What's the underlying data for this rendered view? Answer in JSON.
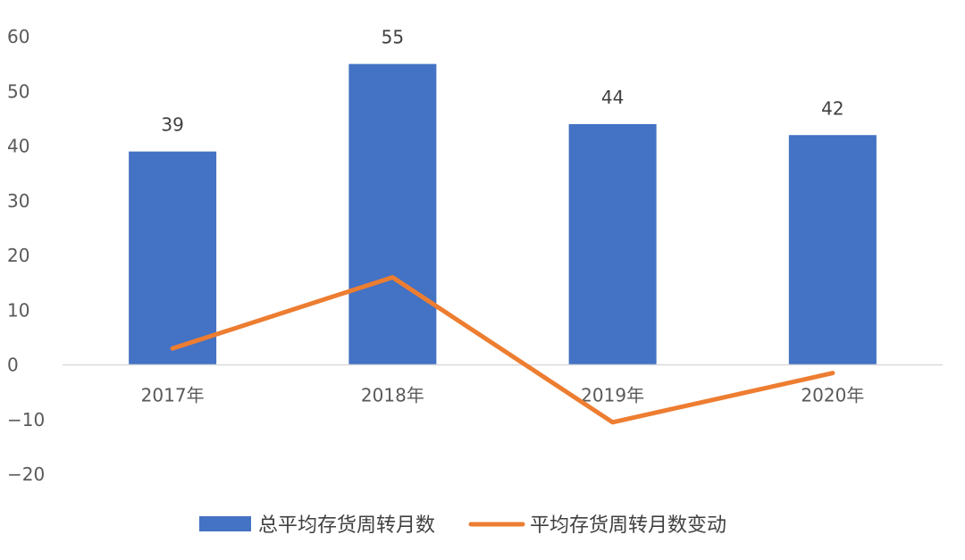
{
  "chart_data": {
    "type": "bar",
    "categories": [
      "2017年",
      "2018年",
      "2019年",
      "2020年"
    ],
    "ylim": [
      -20,
      60
    ],
    "yticks": [
      60,
      50,
      40,
      30,
      20,
      10,
      0,
      -10,
      -20
    ],
    "ytick_labels": [
      "60",
      "50",
      "40",
      "30",
      "20",
      "10",
      "0",
      "−10",
      "−20"
    ],
    "grid": false,
    "legend_position": "bottom",
    "series": [
      {
        "name": "总平均存货周转月数",
        "type": "bar",
        "color": "#4472C4",
        "values": [
          39,
          55,
          44,
          42
        ],
        "data_labels": [
          "39",
          "55",
          "44",
          "42"
        ]
      },
      {
        "name": "平均存货周转月数变动",
        "type": "line",
        "color": "#ED7D31",
        "values": [
          3,
          16,
          -10.5,
          -1.5
        ]
      }
    ]
  }
}
